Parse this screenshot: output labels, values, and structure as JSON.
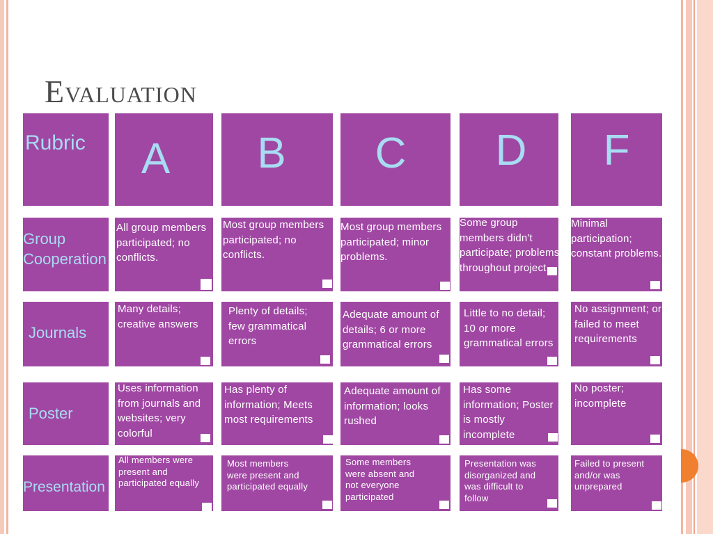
{
  "slide": {
    "title": "Evaluation"
  },
  "rubric": {
    "header_label": "Rubric",
    "grades": [
      "A",
      "B",
      "C",
      "D",
      "F"
    ],
    "rows": [
      {
        "label": "Group Cooperation",
        "cells": [
          "All group members participated; no conflicts.",
          "Most group members participated; no conflicts.",
          "Most group members participated; minor problems.",
          "Some group members didn't participate; problems throughout project",
          "Minimal participation; constant problems."
        ]
      },
      {
        "label": "Journals",
        "cells": [
          "Many details; creative answers",
          "Plenty of details; few grammatical errors",
          "Adequate amount of details; 6 or more grammatical errors",
          "Little to no detail; 10 or more grammatical errors",
          "No assignment; or failed to meet requirements"
        ]
      },
      {
        "label": "Poster",
        "cells": [
          "Uses information from journals and websites; very colorful",
          "Has plenty of information; Meets most requirements",
          "Adequate amount of information; looks rushed",
          "Has some information; Poster is mostly incomplete",
          "No poster; incomplete"
        ]
      },
      {
        "label": "Presentation",
        "cells": [
          "All members were present and participated equally",
          "Most members were present and participated equally",
          "Some members were absent and not everyone participated",
          "Presentation was disorganized and was difficult to follow",
          "Failed to present and/or was unprepared"
        ]
      }
    ]
  },
  "colors": {
    "cell_background": "#a047a3",
    "heading_text": "#a8dcf2",
    "body_text": "#ffffff",
    "title_text": "#4b4b4b",
    "border_stripe": "#f7c9bb",
    "accent_dot": "#f08030"
  }
}
